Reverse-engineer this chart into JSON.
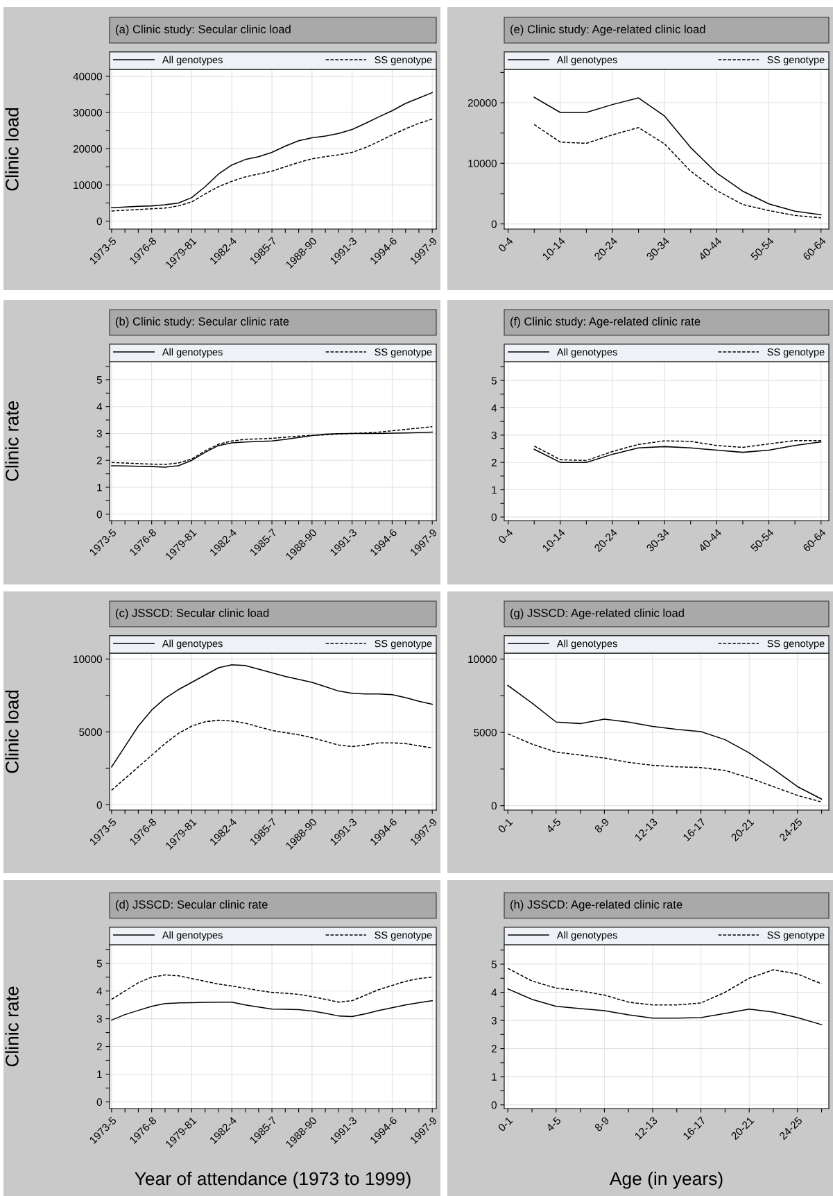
{
  "chart_data": [
    {
      "type": "line",
      "title": "(a) Clinic study: Secular clinic load",
      "ylabel": "Clinic load",
      "legend": "top",
      "grid": true,
      "categories": [
        "1973-5",
        null,
        null,
        "1976-8",
        null,
        null,
        "1979-81",
        null,
        null,
        "1982-4",
        null,
        null,
        "1985-7",
        null,
        null,
        "1988-90",
        null,
        null,
        "1991-3",
        null,
        null,
        "1994-6",
        null,
        null,
        "1997-9"
      ],
      "ylim": [
        -2200,
        41900
      ],
      "yticks": [
        0,
        {
          "value": 5000,
          "label": null
        },
        10000,
        {
          "value": 15000,
          "label": null
        },
        20000,
        {
          "value": 25000,
          "label": null
        },
        30000,
        {
          "value": 35000,
          "label": null
        },
        40000
      ],
      "series": [
        {
          "name": "All genotypes",
          "color": "#000000",
          "line_style": "solid",
          "values": [
            3700,
            3900,
            4100,
            4200,
            4500,
            5000,
            6500,
            9500,
            13000,
            15500,
            17000,
            17800,
            19000,
            20700,
            22200,
            23000,
            23500,
            24200,
            25300,
            27000,
            28800,
            30500,
            32500,
            34000,
            35500
          ]
        },
        {
          "name": "SS genotype",
          "color": "#000000",
          "line_style": "dashed",
          "values": [
            2800,
            3000,
            3200,
            3400,
            3600,
            4200,
            5300,
            7500,
            9500,
            11000,
            12200,
            13000,
            13800,
            15000,
            16200,
            17200,
            17800,
            18300,
            19000,
            20300,
            22000,
            23800,
            25500,
            27000,
            28200
          ]
        }
      ]
    },
    {
      "type": "line",
      "title": "(e) Clinic study: Age-related clinic load",
      "legend": "top",
      "grid": true,
      "categories": [
        "0-4",
        null,
        "10-14",
        null,
        "20-24",
        null,
        "30-34",
        null,
        "40-44",
        null,
        "50-54",
        null,
        "60-64"
      ],
      "ylim": [
        -850,
        25500
      ],
      "yticks": [
        0,
        {
          "value": 5000,
          "label": null
        },
        10000,
        {
          "value": 15000,
          "label": null
        },
        20000,
        {
          "value": 25000,
          "label": null
        }
      ],
      "series": [
        {
          "name": "All genotypes",
          "color": "#000000",
          "line_style": "solid",
          "values": [
            null,
            20900,
            18400,
            18400,
            19700,
            20800,
            17800,
            12600,
            8400,
            5400,
            3300,
            2100,
            1500
          ]
        },
        {
          "name": "SS genotype",
          "color": "#000000",
          "line_style": "dashed",
          "values": [
            null,
            16400,
            13500,
            13300,
            14700,
            15900,
            13200,
            8700,
            5500,
            3200,
            2200,
            1400,
            1000
          ]
        }
      ]
    },
    {
      "type": "line",
      "title": "(b) Clinic study: Secular clinic rate",
      "ylabel": "Clinic rate",
      "legend": "top",
      "grid": true,
      "categories": [
        "1973-5",
        null,
        null,
        "1976-8",
        null,
        null,
        "1979-81",
        null,
        null,
        "1982-4",
        null,
        null,
        "1985-7",
        null,
        null,
        "1988-90",
        null,
        null,
        "1991-3",
        null,
        null,
        "1994-6",
        null,
        null,
        "1997-9"
      ],
      "ylim": [
        -0.24,
        5.67
      ],
      "yticks": [
        0,
        {
          "value": 0.5,
          "label": null
        },
        1,
        {
          "value": 1.5,
          "label": null
        },
        2,
        {
          "value": 2.5,
          "label": null
        },
        3,
        {
          "value": 3.5,
          "label": null
        },
        4,
        {
          "value": 4.5,
          "label": null
        },
        5,
        {
          "value": 5.5,
          "label": null
        }
      ],
      "series": [
        {
          "name": "All genotypes",
          "color": "#000000",
          "line_style": "solid",
          "values": [
            1.8,
            1.79,
            1.78,
            1.77,
            1.75,
            1.8,
            2.0,
            2.3,
            2.55,
            2.65,
            2.68,
            2.7,
            2.72,
            2.78,
            2.85,
            2.92,
            2.97,
            2.99,
            3.0,
            3.0,
            3.0,
            3.01,
            3.02,
            3.03,
            3.05
          ]
        },
        {
          "name": "SS genotype",
          "color": "#000000",
          "line_style": "dashed",
          "values": [
            1.92,
            1.9,
            1.88,
            1.86,
            1.85,
            1.9,
            2.05,
            2.35,
            2.6,
            2.72,
            2.78,
            2.8,
            2.82,
            2.86,
            2.9,
            2.93,
            2.95,
            2.98,
            3.0,
            3.02,
            3.05,
            3.1,
            3.15,
            3.2,
            3.25
          ]
        }
      ]
    },
    {
      "type": "line",
      "title": "(f) Clinic study: Age-related clinic rate",
      "legend": "top",
      "grid": true,
      "categories": [
        "0-4",
        null,
        "10-14",
        null,
        "20-24",
        null,
        "30-34",
        null,
        "40-44",
        null,
        "50-54",
        null,
        "60-64"
      ],
      "ylim": [
        -0.13,
        5.69
      ],
      "yticks": [
        0,
        {
          "value": 0.5,
          "label": null
        },
        1,
        {
          "value": 1.5,
          "label": null
        },
        2,
        {
          "value": 2.5,
          "label": null
        },
        3,
        {
          "value": 3.5,
          "label": null
        },
        4,
        {
          "value": 4.5,
          "label": null
        },
        5,
        {
          "value": 5.5,
          "label": null
        }
      ],
      "series": [
        {
          "name": "All genotypes",
          "color": "#000000",
          "line_style": "solid",
          "values": [
            null,
            2.48,
            2.0,
            2.0,
            2.3,
            2.53,
            2.58,
            2.53,
            2.45,
            2.37,
            2.45,
            2.62,
            2.75
          ]
        },
        {
          "name": "SS genotype",
          "color": "#000000",
          "line_style": "dashed",
          "values": [
            null,
            2.6,
            2.1,
            2.07,
            2.4,
            2.66,
            2.79,
            2.77,
            2.62,
            2.55,
            2.68,
            2.8,
            2.8
          ]
        }
      ]
    },
    {
      "type": "line",
      "title": "(c) JSSCD: Secular clinic load",
      "ylabel": "Clinic load",
      "legend": "top",
      "grid": true,
      "categories": [
        "1973-5",
        null,
        null,
        "1976-8",
        null,
        null,
        "1979-81",
        null,
        null,
        "1982-4",
        null,
        null,
        "1985-7",
        null,
        null,
        "1988-90",
        null,
        null,
        "1991-3",
        null,
        null,
        "1994-6",
        null,
        null,
        "1997-9"
      ],
      "ylim": [
        -360,
        10400
      ],
      "yticks": [
        0,
        {
          "value": 2500,
          "label": null
        },
        5000,
        {
          "value": 7500,
          "label": null
        },
        10000
      ],
      "series": [
        {
          "name": "All genotypes",
          "color": "#000000",
          "line_style": "solid",
          "values": [
            2600,
            4000,
            5400,
            6500,
            7300,
            7900,
            8400,
            8900,
            9400,
            9600,
            9550,
            9300,
            9050,
            8800,
            8600,
            8400,
            8100,
            7800,
            7650,
            7600,
            7600,
            7550,
            7350,
            7100,
            6900
          ]
        },
        {
          "name": "SS genotype",
          "color": "#000000",
          "line_style": "dashed",
          "values": [
            1000,
            1800,
            2600,
            3400,
            4200,
            4900,
            5400,
            5700,
            5800,
            5750,
            5600,
            5350,
            5100,
            4950,
            4800,
            4600,
            4350,
            4100,
            4000,
            4100,
            4250,
            4250,
            4200,
            4050,
            3900
          ]
        }
      ]
    },
    {
      "type": "line",
      "title": "(g) JSSCD: Age-related clinic load",
      "legend": "top",
      "grid": true,
      "categories": [
        "0-1",
        null,
        "4-5",
        null,
        "8-9",
        null,
        "12-13",
        null,
        "16-17",
        null,
        "20-21",
        null,
        "24-25",
        null
      ],
      "ylim": [
        -300,
        10400
      ],
      "yticks": [
        0,
        {
          "value": 2500,
          "label": null
        },
        5000,
        {
          "value": 7500,
          "label": null
        },
        10000
      ],
      "series": [
        {
          "name": "All genotypes",
          "color": "#000000",
          "line_style": "solid",
          "values": [
            8200,
            7000,
            5700,
            5600,
            5900,
            5700,
            5400,
            5200,
            5050,
            4500,
            3600,
            2500,
            1300,
            450
          ]
        },
        {
          "name": "SS genotype",
          "color": "#000000",
          "line_style": "dashed",
          "values": [
            4900,
            4200,
            3650,
            3450,
            3250,
            2950,
            2750,
            2650,
            2600,
            2400,
            1900,
            1300,
            700,
            250
          ]
        }
      ]
    },
    {
      "type": "line",
      "title": "(d) JSSCD: Secular clinic rate",
      "ylabel": "Clinic rate",
      "xlabel": "Year of attendance (1973 to 1999)",
      "legend": "top",
      "grid": true,
      "categories": [
        "1973-5",
        null,
        null,
        "1976-8",
        null,
        null,
        "1979-81",
        null,
        null,
        "1982-4",
        null,
        null,
        "1985-7",
        null,
        null,
        "1988-90",
        null,
        null,
        "1991-3",
        null,
        null,
        "1994-6",
        null,
        null,
        "1997-9"
      ],
      "ylim": [
        -0.24,
        5.67
      ],
      "yticks": [
        0,
        {
          "value": 0.5,
          "label": null
        },
        1,
        {
          "value": 1.5,
          "label": null
        },
        2,
        {
          "value": 2.5,
          "label": null
        },
        3,
        {
          "value": 3.5,
          "label": null
        },
        4,
        {
          "value": 4.5,
          "label": null
        },
        5,
        {
          "value": 5.5,
          "label": null
        }
      ],
      "series": [
        {
          "name": "All genotypes",
          "color": "#000000",
          "line_style": "solid",
          "values": [
            2.95,
            3.15,
            3.3,
            3.45,
            3.55,
            3.57,
            3.58,
            3.59,
            3.6,
            3.6,
            3.5,
            3.42,
            3.35,
            3.34,
            3.33,
            3.28,
            3.2,
            3.1,
            3.08,
            3.18,
            3.3,
            3.4,
            3.5,
            3.58,
            3.65
          ]
        },
        {
          "name": "SS genotype",
          "color": "#000000",
          "line_style": "dashed",
          "values": [
            3.7,
            4.0,
            4.3,
            4.5,
            4.58,
            4.55,
            4.45,
            4.35,
            4.25,
            4.18,
            4.1,
            4.02,
            3.95,
            3.92,
            3.88,
            3.8,
            3.7,
            3.6,
            3.65,
            3.85,
            4.05,
            4.2,
            4.35,
            4.45,
            4.5
          ]
        }
      ]
    },
    {
      "type": "line",
      "title": "(h) JSSCD: Age-related clinic rate",
      "xlabel": "Age (in years)",
      "legend": "top",
      "grid": true,
      "categories": [
        "0-1",
        null,
        "4-5",
        null,
        "8-9",
        null,
        "12-13",
        null,
        "16-17",
        null,
        "20-21",
        null,
        "24-25",
        null
      ],
      "ylim": [
        -0.13,
        5.69
      ],
      "yticks": [
        0,
        {
          "value": 0.5,
          "label": null
        },
        1,
        {
          "value": 1.5,
          "label": null
        },
        2,
        {
          "value": 2.5,
          "label": null
        },
        3,
        {
          "value": 3.5,
          "label": null
        },
        4,
        {
          "value": 4.5,
          "label": null
        },
        5,
        {
          "value": 5.5,
          "label": null
        }
      ],
      "series": [
        {
          "name": "All genotypes",
          "color": "#000000",
          "line_style": "solid",
          "values": [
            4.12,
            3.75,
            3.5,
            3.42,
            3.35,
            3.2,
            3.08,
            3.08,
            3.1,
            3.25,
            3.4,
            3.3,
            3.1,
            2.85
          ]
        },
        {
          "name": "SS genotype",
          "color": "#000000",
          "line_style": "dashed",
          "values": [
            4.85,
            4.4,
            4.15,
            4.05,
            3.9,
            3.65,
            3.55,
            3.55,
            3.62,
            4.0,
            4.5,
            4.8,
            4.65,
            4.3
          ]
        }
      ]
    }
  ]
}
